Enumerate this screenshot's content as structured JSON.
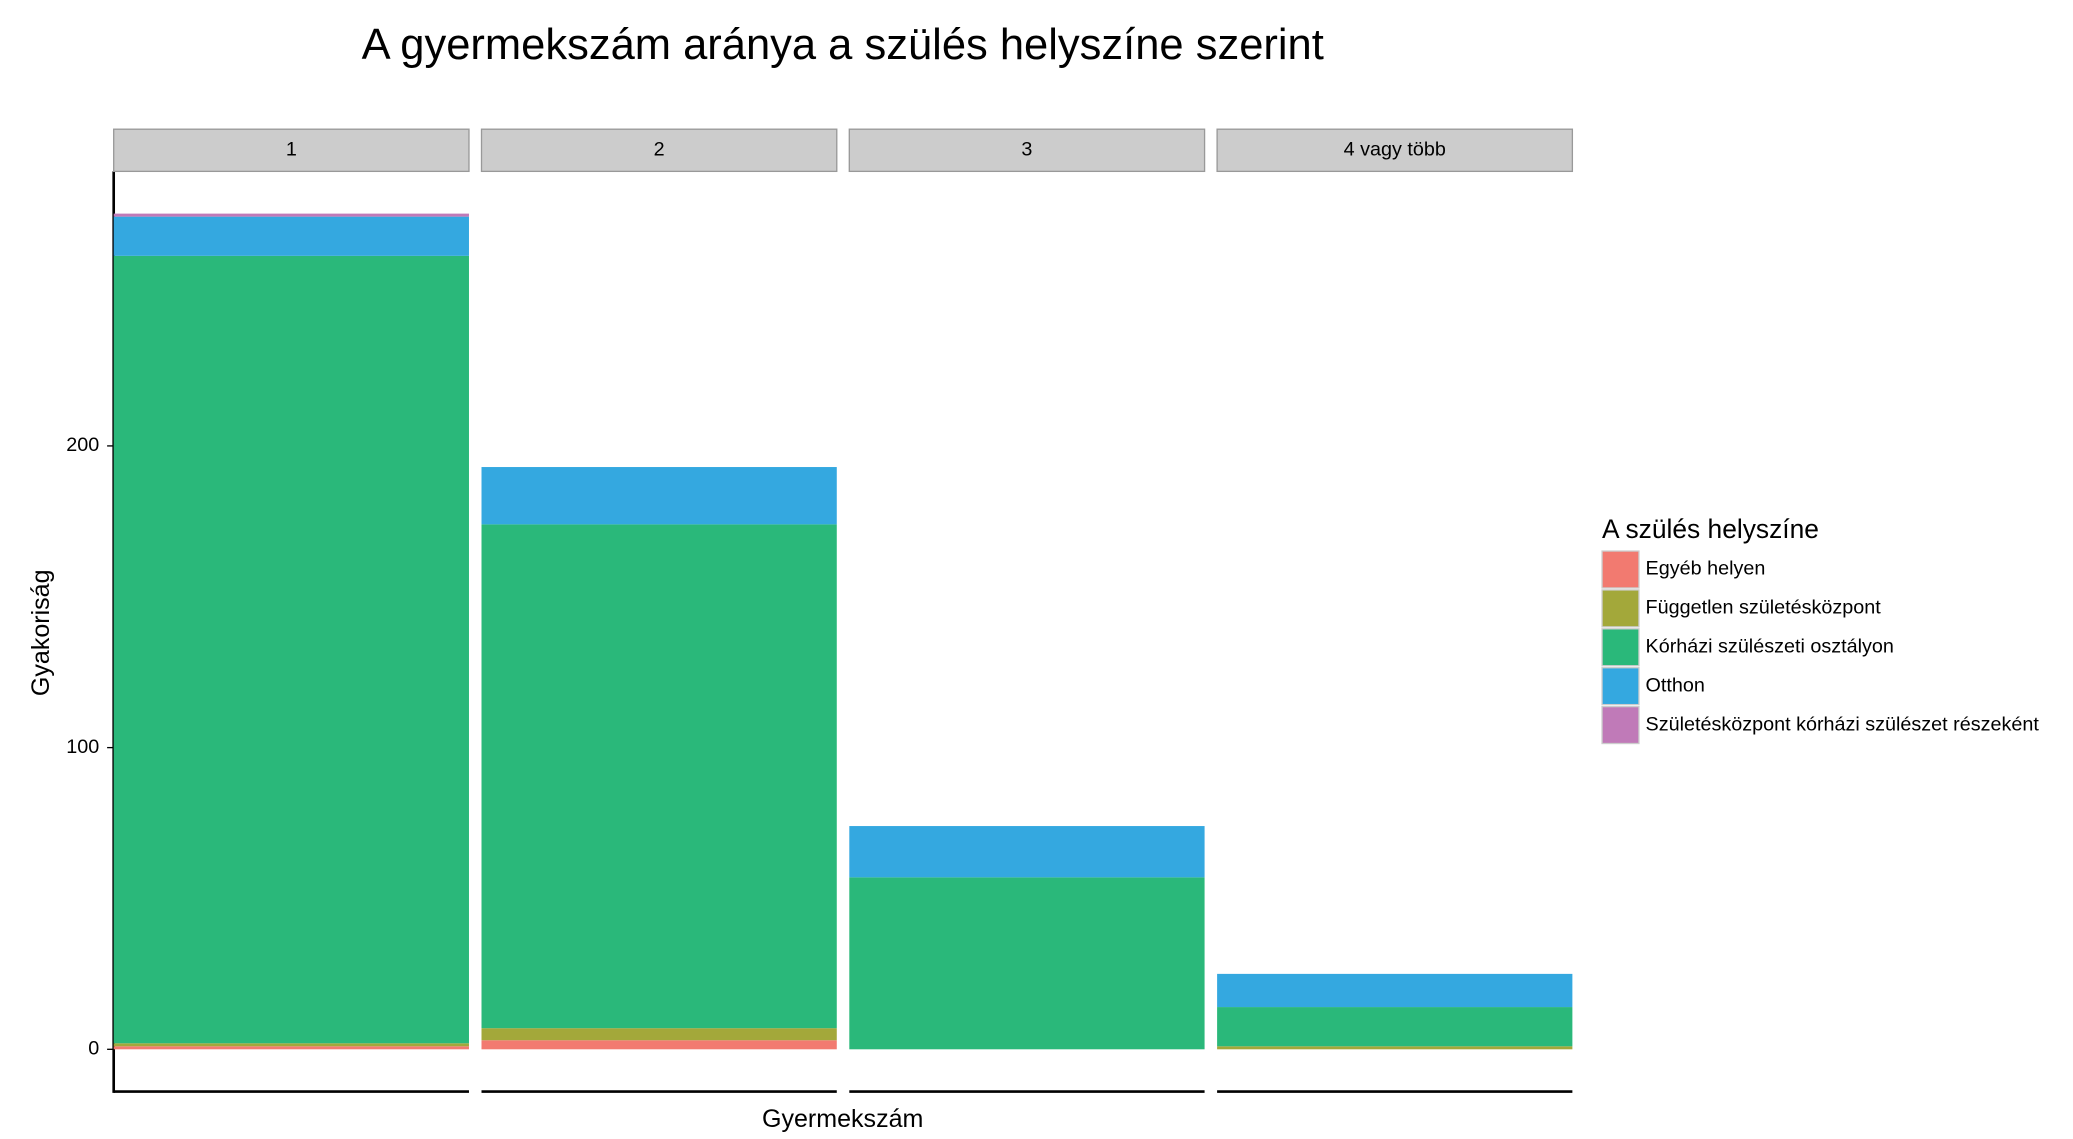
{
  "chart_data": {
    "type": "stacked_bar_facets",
    "title": "A gyermekszám aránya a szülés helyszíne szerint",
    "x_label": "Gyermekszám",
    "y_label": "Gyakoriság",
    "legend_title": "A szülés helyszíne",
    "legend_position": "right",
    "categories": [
      "1",
      "2",
      "3",
      "4 vagy több"
    ],
    "series": [
      {
        "name": "Egyéb helyen",
        "color": "#f27a70",
        "values": [
          1,
          3,
          0,
          0
        ]
      },
      {
        "name": "Független születésközpont",
        "color": "#a3a83a",
        "values": [
          1,
          4,
          0,
          1
        ]
      },
      {
        "name": "Kórházi szülészeti osztályon",
        "color": "#2ab87a",
        "values": [
          261,
          167,
          57,
          13
        ]
      },
      {
        "name": "Otthon",
        "color": "#34a8e0",
        "values": [
          13,
          19,
          17,
          11
        ]
      },
      {
        "name": "Születésközpont kórházi szülészet részeként",
        "color": "#c07ab8",
        "values": [
          1,
          0,
          0,
          0
        ]
      }
    ],
    "ylim": [
      -14,
      291
    ],
    "yticks": [
      0,
      100,
      200
    ]
  }
}
